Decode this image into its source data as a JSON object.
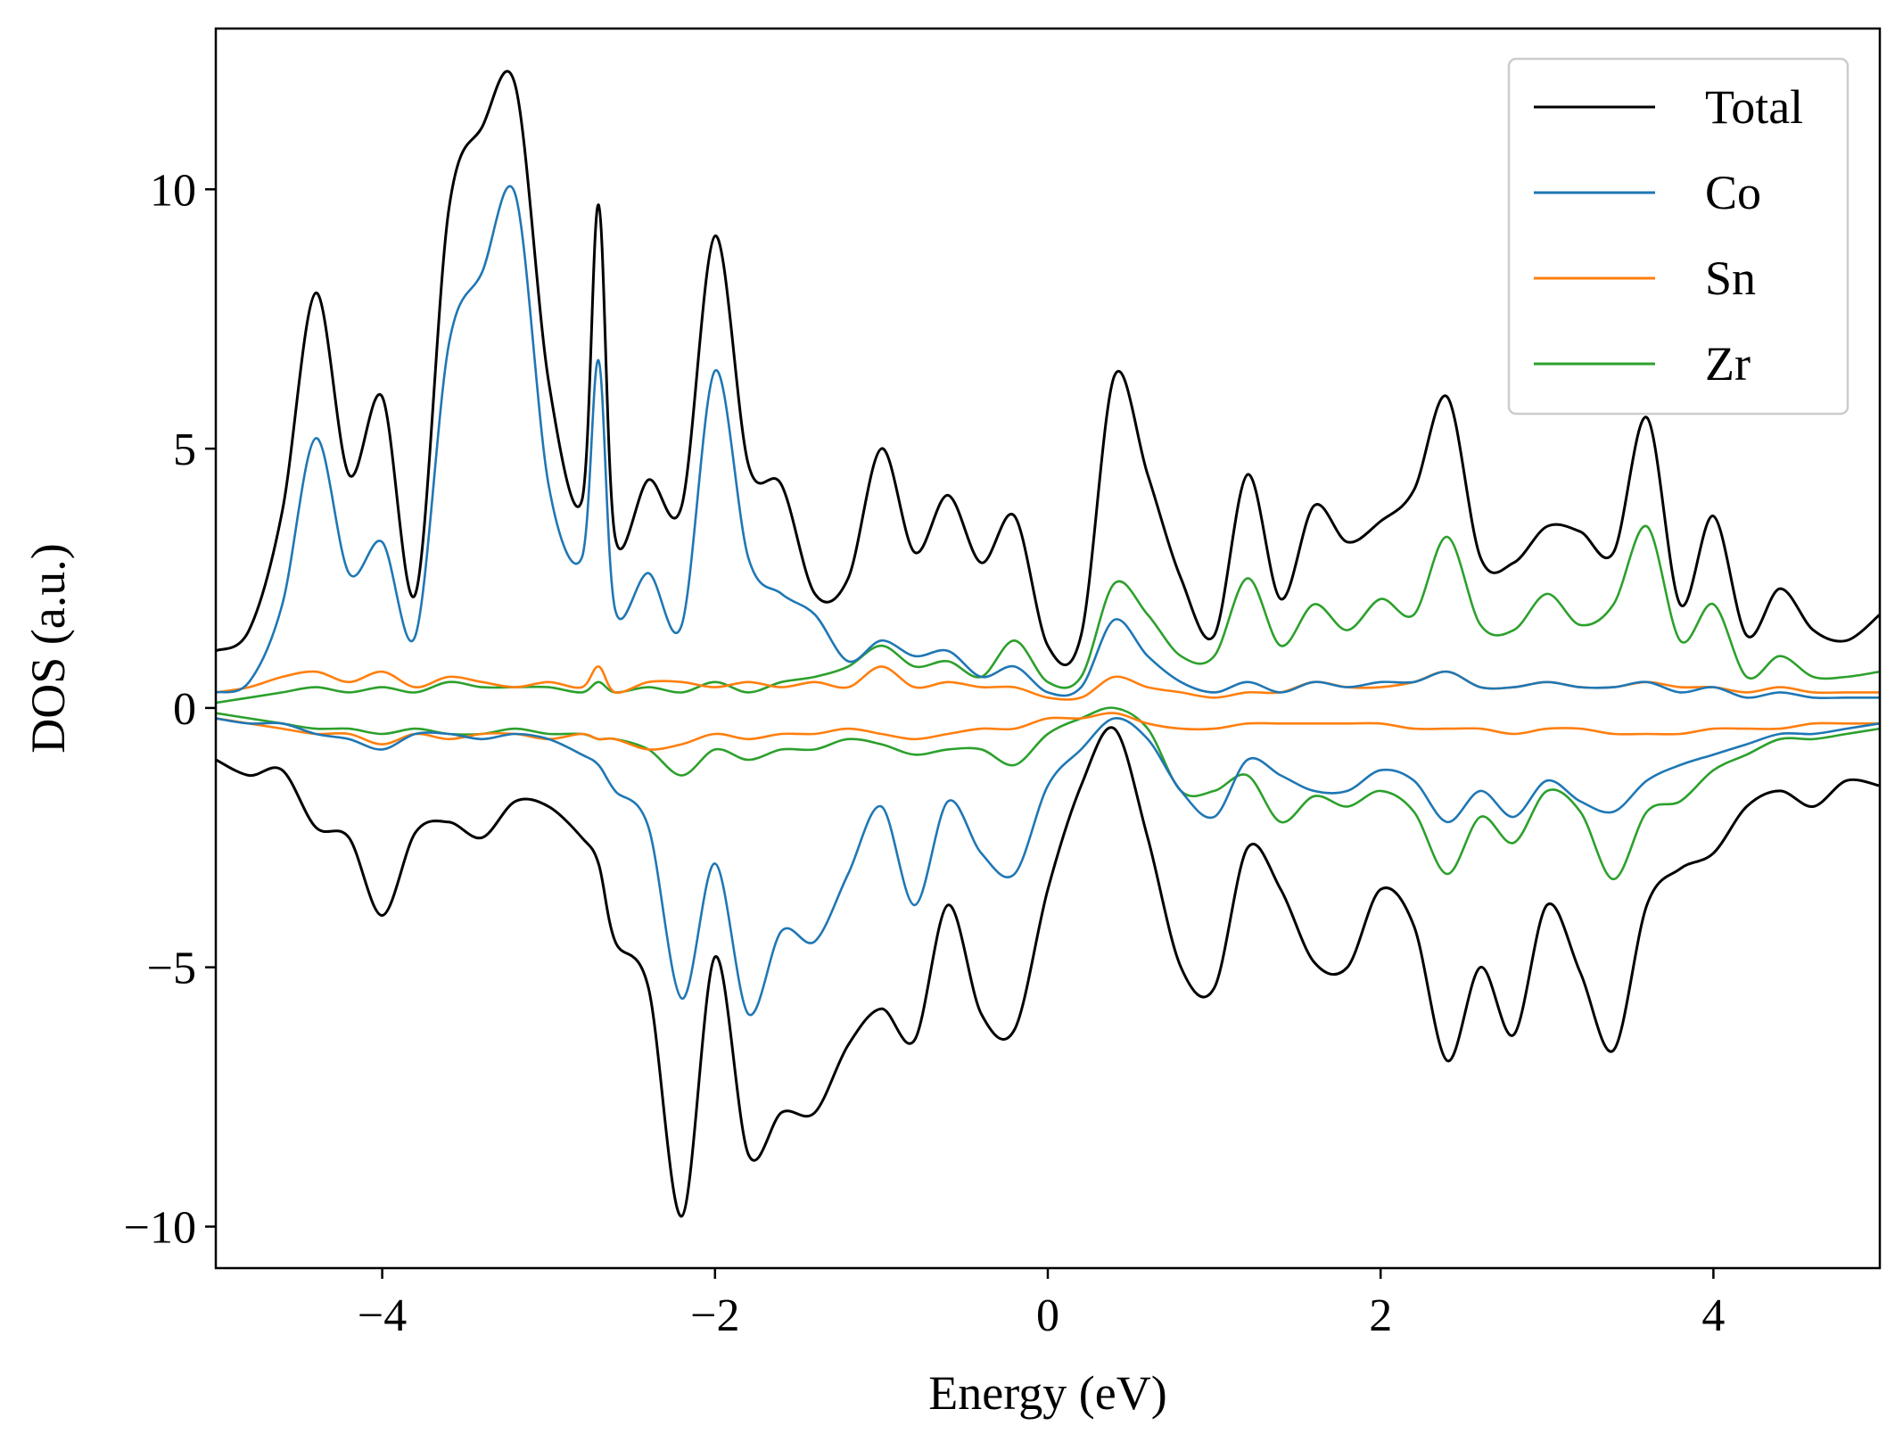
{
  "chart_data": {
    "type": "line",
    "xlabel": "Energy (eV)",
    "ylabel": "DOS (a.u.)",
    "xlim": [
      -5,
      5
    ],
    "ylim": [
      -10.8,
      13.1
    ],
    "xticks": [
      -4,
      -2,
      0,
      2,
      4
    ],
    "xtick_labels": [
      "−4",
      "−2",
      "0",
      "2",
      "4"
    ],
    "yticks": [
      -10,
      -5,
      0,
      5,
      10
    ],
    "ytick_labels": [
      "−10",
      "−5",
      "0",
      "5",
      "10"
    ],
    "grid": false,
    "legend_position": "top-right",
    "x": [
      -5.0,
      -4.8,
      -4.6,
      -4.4,
      -4.2,
      -4.0,
      -3.8,
      -3.6,
      -3.4,
      -3.2,
      -3.0,
      -2.8,
      -2.7,
      -2.6,
      -2.4,
      -2.2,
      -2.0,
      -1.8,
      -1.6,
      -1.4,
      -1.2,
      -1.0,
      -0.8,
      -0.6,
      -0.4,
      -0.2,
      0.0,
      0.2,
      0.4,
      0.6,
      0.8,
      1.0,
      1.2,
      1.4,
      1.6,
      1.8,
      2.0,
      2.2,
      2.4,
      2.6,
      2.8,
      3.0,
      3.2,
      3.4,
      3.6,
      3.8,
      4.0,
      4.2,
      4.4,
      4.6,
      4.8,
      5.0
    ],
    "series": [
      {
        "name": "Total",
        "color": "#000000",
        "up": [
          1.1,
          1.5,
          3.8,
          8.0,
          4.5,
          6.0,
          2.2,
          9.6,
          11.2,
          12.0,
          6.3,
          4.0,
          9.7,
          3.3,
          4.4,
          3.9,
          9.1,
          4.7,
          4.3,
          2.2,
          2.5,
          5.0,
          3.0,
          4.1,
          2.8,
          3.7,
          1.2,
          1.4,
          6.4,
          4.5,
          2.5,
          1.4,
          4.5,
          2.1,
          3.9,
          3.2,
          3.6,
          4.2,
          6.0,
          2.9,
          2.8,
          3.5,
          3.4,
          3.0,
          5.6,
          2.0,
          3.7,
          1.4,
          2.3,
          1.5,
          1.3,
          1.8
        ],
        "down": [
          -1.0,
          -1.3,
          -1.2,
          -2.3,
          -2.5,
          -4.0,
          -2.4,
          -2.2,
          -2.5,
          -1.8,
          -1.9,
          -2.5,
          -3.0,
          -4.5,
          -5.4,
          -9.8,
          -4.8,
          -8.6,
          -7.8,
          -7.8,
          -6.5,
          -5.8,
          -6.4,
          -3.8,
          -5.9,
          -6.2,
          -3.5,
          -1.5,
          -0.4,
          -2.5,
          -5.0,
          -5.4,
          -2.7,
          -3.5,
          -4.9,
          -5.0,
          -3.5,
          -4.2,
          -6.8,
          -5.0,
          -6.3,
          -3.8,
          -5.1,
          -6.6,
          -3.8,
          -3.1,
          -2.8,
          -1.9,
          -1.6,
          -1.9,
          -1.4,
          -1.5
        ]
      },
      {
        "name": "Co",
        "color": "#1f77b4",
        "up": [
          0.3,
          0.5,
          2.0,
          5.2,
          2.6,
          3.2,
          1.4,
          7.0,
          8.4,
          9.9,
          4.3,
          2.9,
          6.7,
          1.9,
          2.6,
          1.6,
          6.5,
          2.9,
          2.2,
          1.8,
          0.9,
          1.3,
          1.0,
          1.1,
          0.6,
          0.8,
          0.3,
          0.4,
          1.7,
          1.0,
          0.5,
          0.3,
          0.5,
          0.3,
          0.5,
          0.4,
          0.5,
          0.5,
          0.7,
          0.4,
          0.4,
          0.5,
          0.4,
          0.4,
          0.5,
          0.3,
          0.4,
          0.2,
          0.3,
          0.2,
          0.2,
          0.2
        ],
        "down": [
          -0.2,
          -0.3,
          -0.3,
          -0.5,
          -0.6,
          -0.8,
          -0.5,
          -0.5,
          -0.6,
          -0.5,
          -0.6,
          -0.9,
          -1.1,
          -1.6,
          -2.3,
          -5.6,
          -3.0,
          -5.9,
          -4.3,
          -4.5,
          -3.2,
          -1.9,
          -3.8,
          -1.8,
          -2.8,
          -3.2,
          -1.5,
          -0.8,
          -0.2,
          -0.6,
          -1.6,
          -2.1,
          -1.0,
          -1.3,
          -1.6,
          -1.6,
          -1.2,
          -1.4,
          -2.2,
          -1.6,
          -2.1,
          -1.4,
          -1.8,
          -2.0,
          -1.4,
          -1.1,
          -0.9,
          -0.7,
          -0.5,
          -0.5,
          -0.4,
          -0.3
        ]
      },
      {
        "name": "Sn",
        "color": "#ff7f0e",
        "up": [
          0.3,
          0.4,
          0.6,
          0.7,
          0.5,
          0.7,
          0.4,
          0.6,
          0.5,
          0.4,
          0.5,
          0.4,
          0.8,
          0.3,
          0.5,
          0.5,
          0.4,
          0.5,
          0.4,
          0.5,
          0.4,
          0.8,
          0.4,
          0.5,
          0.4,
          0.4,
          0.2,
          0.2,
          0.6,
          0.4,
          0.3,
          0.2,
          0.3,
          0.3,
          0.5,
          0.4,
          0.4,
          0.5,
          0.7,
          0.4,
          0.4,
          0.5,
          0.4,
          0.4,
          0.5,
          0.4,
          0.4,
          0.3,
          0.4,
          0.3,
          0.3,
          0.3
        ],
        "down": [
          -0.2,
          -0.3,
          -0.4,
          -0.5,
          -0.5,
          -0.7,
          -0.5,
          -0.6,
          -0.5,
          -0.5,
          -0.6,
          -0.5,
          -0.6,
          -0.6,
          -0.8,
          -0.7,
          -0.5,
          -0.6,
          -0.5,
          -0.5,
          -0.4,
          -0.5,
          -0.6,
          -0.5,
          -0.4,
          -0.4,
          -0.2,
          -0.2,
          -0.1,
          -0.3,
          -0.4,
          -0.4,
          -0.3,
          -0.3,
          -0.3,
          -0.3,
          -0.3,
          -0.4,
          -0.4,
          -0.4,
          -0.5,
          -0.4,
          -0.4,
          -0.5,
          -0.5,
          -0.5,
          -0.4,
          -0.4,
          -0.4,
          -0.3,
          -0.3,
          -0.3
        ]
      },
      {
        "name": "Zr",
        "color": "#2ca02c",
        "up": [
          0.1,
          0.2,
          0.3,
          0.4,
          0.3,
          0.4,
          0.3,
          0.5,
          0.4,
          0.4,
          0.4,
          0.3,
          0.5,
          0.3,
          0.4,
          0.3,
          0.5,
          0.3,
          0.5,
          0.6,
          0.8,
          1.2,
          0.8,
          0.9,
          0.6,
          1.3,
          0.5,
          0.6,
          2.4,
          1.8,
          1.0,
          1.0,
          2.5,
          1.2,
          2.0,
          1.5,
          2.1,
          1.8,
          3.3,
          1.6,
          1.5,
          2.2,
          1.6,
          2.0,
          3.5,
          1.3,
          2.0,
          0.6,
          1.0,
          0.6,
          0.6,
          0.7
        ],
        "down": [
          -0.1,
          -0.2,
          -0.3,
          -0.4,
          -0.4,
          -0.5,
          -0.4,
          -0.5,
          -0.5,
          -0.4,
          -0.5,
          -0.5,
          -0.6,
          -0.6,
          -0.8,
          -1.3,
          -0.8,
          -1.0,
          -0.8,
          -0.8,
          -0.6,
          -0.7,
          -0.9,
          -0.8,
          -0.8,
          -1.1,
          -0.5,
          -0.2,
          0.0,
          -0.4,
          -1.6,
          -1.6,
          -1.3,
          -2.2,
          -1.7,
          -1.9,
          -1.6,
          -2.0,
          -3.2,
          -2.1,
          -2.6,
          -1.6,
          -2.0,
          -3.3,
          -2.0,
          -1.8,
          -1.2,
          -0.9,
          -0.6,
          -0.6,
          -0.5,
          -0.4
        ]
      }
    ]
  }
}
